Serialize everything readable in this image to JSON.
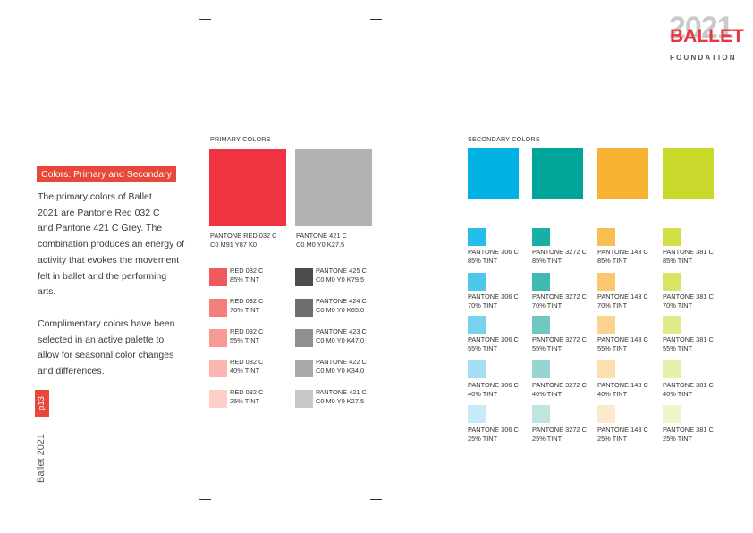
{
  "logo": {
    "year": "2021",
    "name": "BALLET",
    "subtitle": "FOUNDATION"
  },
  "section_tag": "Colors: Primary and Secondary",
  "intro_lines": [
    "The primary colors of Ballet",
    "2021 are Pantone Red 032 C",
    "and Pantone 421 C Grey.  The",
    "combination produces an energy of",
    "activity that evokes the movement",
    "felt in ballet and the performing",
    "arts."
  ],
  "secondary_lines": [
    "Complimentary colors have been",
    "selected in an active palette to",
    "allow for seasonal color changes",
    "and differences."
  ],
  "page_number": "p13",
  "vertical_brand": "Ballet 2021",
  "primary": {
    "heading": "PRIMARY COLORS",
    "main": [
      {
        "name": "PANTONE RED 032 C",
        "spec": "C0 M91 Y87 K0",
        "color": "#ef3340"
      },
      {
        "name": "PANTONE 421 C",
        "spec": "C0 M0 Y0 K27.5",
        "color": "#b2b2b2"
      }
    ],
    "red_tints": [
      {
        "line1": "RED 032 C",
        "line2": "85% TINT",
        "color": "#f15a5c"
      },
      {
        "line1": "RED 032 C",
        "line2": "70% TINT",
        "color": "#f37f78"
      },
      {
        "line1": "RED 032 C",
        "line2": "55% TINT",
        "color": "#f69b92"
      },
      {
        "line1": "RED 032 C",
        "line2": "40% TINT",
        "color": "#f9b6ae"
      },
      {
        "line1": "RED 032 C",
        "line2": "25% TINT",
        "color": "#fbcfc8"
      }
    ],
    "grey_tints": [
      {
        "line1": "PANTONE 425 C",
        "line2": "C0 M0 Y0 K79.5",
        "color": "#4d4d4f"
      },
      {
        "line1": "PANTONE 424 C",
        "line2": "C0 M0 Y0 K65.0",
        "color": "#6d6e70"
      },
      {
        "line1": "PANTONE 423 C",
        "line2": "C0 M0 Y0 K47.0",
        "color": "#8f9092"
      },
      {
        "line1": "PANTONE 422 C",
        "line2": "C0 M0 Y0 K34.0",
        "color": "#a7a8aa"
      },
      {
        "line1": "PANTONE 421 C",
        "line2": "C0 M0 Y0 K27.5",
        "color": "#c8c8c8"
      }
    ]
  },
  "secondary": {
    "heading": "SECONDARY COLORS",
    "columns": [
      {
        "main": "#00b2e3",
        "name": "PANTONE 306 C",
        "tints": [
          {
            "label": "85% TINT",
            "color": "#27bde8"
          },
          {
            "label": "70% TINT",
            "color": "#4dc8eb"
          },
          {
            "label": "55% TINT",
            "color": "#78d2ef"
          },
          {
            "label": "40% TINT",
            "color": "#a3def4"
          },
          {
            "label": "25% TINT",
            "color": "#c5eaf8"
          }
        ]
      },
      {
        "main": "#00a499",
        "name": "PANTONE 3272 C",
        "tints": [
          {
            "label": "85% TINT",
            "color": "#1aafa5"
          },
          {
            "label": "70% TINT",
            "color": "#40b9b0"
          },
          {
            "label": "55% TINT",
            "color": "#6ec8c0"
          },
          {
            "label": "40% TINT",
            "color": "#97d6d0"
          },
          {
            "label": "25% TINT",
            "color": "#bfe5e1"
          }
        ]
      },
      {
        "main": "#f8b335",
        "name": "PANTONE 143 C",
        "tints": [
          {
            "label": "85% TINT",
            "color": "#f9bd52"
          },
          {
            "label": "70% TINT",
            "color": "#fac76e"
          },
          {
            "label": "55% TINT",
            "color": "#fbd38e"
          },
          {
            "label": "40% TINT",
            "color": "#fcdfad"
          },
          {
            "label": "25% TINT",
            "color": "#fdeacb"
          }
        ]
      },
      {
        "main": "#c9d92b",
        "name": "PANTONE 381 C",
        "tints": [
          {
            "label": "85% TINT",
            "color": "#d1de47"
          },
          {
            "label": "70% TINT",
            "color": "#d9e467"
          },
          {
            "label": "55% TINT",
            "color": "#e1ea88"
          },
          {
            "label": "40% TINT",
            "color": "#eaf0aa"
          },
          {
            "label": "25% TINT",
            "color": "#f1f5c9"
          }
        ]
      }
    ]
  }
}
